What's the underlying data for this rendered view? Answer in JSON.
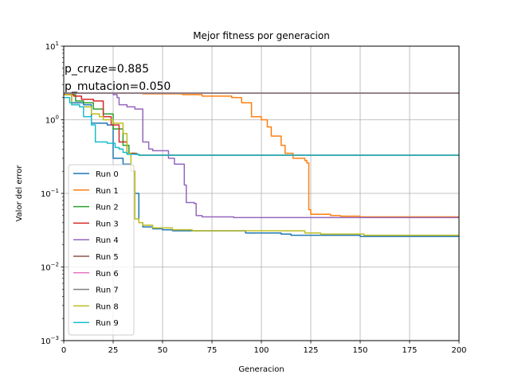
{
  "chart_data": {
    "type": "line",
    "title": "Mejor fitness por generacion",
    "xlabel": "Generacion",
    "ylabel": "Valor del error",
    "xlim": [
      0,
      200
    ],
    "ylim": [
      0.001,
      10
    ],
    "yscale": "log",
    "grid": true,
    "legend_position": "lower-left",
    "xticks": [
      0,
      25,
      50,
      75,
      100,
      125,
      150,
      175,
      200
    ],
    "xtick_labels": [
      "0",
      "25",
      "50",
      "75",
      "100",
      "125",
      "150",
      "175",
      "200"
    ],
    "yticks": [
      0.001,
      0.01,
      0.1,
      1,
      10
    ],
    "ytick_labels": [
      {
        "base": "10",
        "exp": "−3"
      },
      {
        "base": "10",
        "exp": "−2"
      },
      {
        "base": "10",
        "exp": "−1"
      },
      {
        "base": "10",
        "exp": "0"
      },
      {
        "base": "10",
        "exp": "1"
      }
    ],
    "annotations": [
      "p_cruze=0.885",
      "p_mutacion=0.050"
    ],
    "series": [
      {
        "name": "Run 0",
        "color": "#1f77b4",
        "points": [
          [
            0,
            2.3
          ],
          [
            3,
            2.2
          ],
          [
            4,
            1.7
          ],
          [
            10,
            1.6
          ],
          [
            14,
            0.9
          ],
          [
            22,
            0.85
          ],
          [
            25,
            0.3
          ],
          [
            30,
            0.25
          ],
          [
            32,
            0.25
          ],
          [
            34,
            0.2
          ],
          [
            36,
            0.1
          ],
          [
            38,
            0.04
          ],
          [
            40,
            0.035
          ],
          [
            45,
            0.033
          ],
          [
            50,
            0.032
          ],
          [
            55,
            0.031
          ],
          [
            65,
            0.031
          ],
          [
            90,
            0.031
          ],
          [
            92,
            0.029
          ],
          [
            110,
            0.028
          ],
          [
            115,
            0.027
          ],
          [
            125,
            0.027
          ],
          [
            150,
            0.026
          ],
          [
            200,
            0.026
          ]
        ]
      },
      {
        "name": "Run 1",
        "color": "#ff7f0e",
        "points": [
          [
            0,
            2.3
          ],
          [
            30,
            2.3
          ],
          [
            40,
            2.25
          ],
          [
            60,
            2.2
          ],
          [
            70,
            2.1
          ],
          [
            85,
            2.0
          ],
          [
            90,
            1.7
          ],
          [
            95,
            1.1
          ],
          [
            100,
            1.0
          ],
          [
            103,
            0.8
          ],
          [
            105,
            0.6
          ],
          [
            110,
            0.45
          ],
          [
            112,
            0.35
          ],
          [
            115,
            0.35
          ],
          [
            116,
            0.3
          ],
          [
            122,
            0.28
          ],
          [
            123,
            0.26
          ],
          [
            124,
            0.06
          ],
          [
            125,
            0.052
          ],
          [
            135,
            0.05
          ],
          [
            140,
            0.049
          ],
          [
            150,
            0.048
          ],
          [
            200,
            0.047
          ]
        ]
      },
      {
        "name": "Run 2",
        "color": "#2ca02c",
        "points": [
          [
            0,
            2.2
          ],
          [
            5,
            2.2
          ],
          [
            6,
            1.8
          ],
          [
            10,
            1.7
          ],
          [
            15,
            1.4
          ],
          [
            20,
            1.2
          ],
          [
            25,
            0.75
          ],
          [
            30,
            0.45
          ],
          [
            33,
            0.35
          ],
          [
            37,
            0.34
          ],
          [
            38,
            0.33
          ],
          [
            200,
            0.33
          ]
        ]
      },
      {
        "name": "Run 3",
        "color": "#d62728",
        "points": [
          [
            0,
            2.2
          ],
          [
            5,
            2.1
          ],
          [
            9,
            1.9
          ],
          [
            15,
            1.8
          ],
          [
            20,
            1.1
          ],
          [
            24,
            0.85
          ],
          [
            28,
            0.5
          ],
          [
            32,
            0.35
          ],
          [
            36,
            0.34
          ],
          [
            38,
            0.33
          ],
          [
            200,
            0.33
          ]
        ]
      },
      {
        "name": "Run 4",
        "color": "#9467bd",
        "points": [
          [
            0,
            2.3
          ],
          [
            20,
            2.3
          ],
          [
            25,
            2.2
          ],
          [
            27,
            2.0
          ],
          [
            28,
            1.6
          ],
          [
            30,
            1.6
          ],
          [
            32,
            1.5
          ],
          [
            36,
            1.4
          ],
          [
            40,
            0.5
          ],
          [
            43,
            0.4
          ],
          [
            45,
            0.38
          ],
          [
            52,
            0.38
          ],
          [
            53,
            0.3
          ],
          [
            56,
            0.25
          ],
          [
            60,
            0.25
          ],
          [
            61,
            0.13
          ],
          [
            62,
            0.075
          ],
          [
            66,
            0.073
          ],
          [
            67,
            0.05
          ],
          [
            70,
            0.048
          ],
          [
            85,
            0.048
          ],
          [
            86,
            0.047
          ],
          [
            200,
            0.047
          ]
        ]
      },
      {
        "name": "Run 5",
        "color": "#8c564b",
        "points": [
          [
            0,
            2.3
          ],
          [
            200,
            2.3
          ]
        ]
      },
      {
        "name": "Run 6",
        "color": "#e377c2",
        "points": [
          [
            0,
            2.3
          ],
          [
            200,
            2.3
          ]
        ]
      },
      {
        "name": "Run 7",
        "color": "#7f7f7f",
        "points": [
          [
            0,
            2.3
          ],
          [
            200,
            2.3
          ]
        ]
      },
      {
        "name": "Run 8",
        "color": "#bcbd22",
        "points": [
          [
            0,
            2.2
          ],
          [
            4,
            1.6
          ],
          [
            8,
            1.5
          ],
          [
            12,
            1.5
          ],
          [
            14,
            1.2
          ],
          [
            18,
            1.1
          ],
          [
            20,
            1.0
          ],
          [
            25,
            0.9
          ],
          [
            30,
            0.65
          ],
          [
            32,
            0.35
          ],
          [
            34,
            0.2
          ],
          [
            36,
            0.045
          ],
          [
            38,
            0.04
          ],
          [
            40,
            0.037
          ],
          [
            45,
            0.034
          ],
          [
            55,
            0.032
          ],
          [
            65,
            0.031
          ],
          [
            120,
            0.031
          ],
          [
            122,
            0.029
          ],
          [
            130,
            0.028
          ],
          [
            150,
            0.028
          ],
          [
            152,
            0.027
          ],
          [
            200,
            0.026
          ]
        ]
      },
      {
        "name": "Run 9",
        "color": "#17becf",
        "points": [
          [
            0,
            2.0
          ],
          [
            3,
            1.7
          ],
          [
            4,
            1.6
          ],
          [
            8,
            1.5
          ],
          [
            10,
            1.1
          ],
          [
            14,
            0.85
          ],
          [
            16,
            0.5
          ],
          [
            22,
            0.48
          ],
          [
            26,
            0.42
          ],
          [
            28,
            0.4
          ],
          [
            30,
            0.36
          ],
          [
            32,
            0.34
          ],
          [
            38,
            0.33
          ],
          [
            200,
            0.33
          ]
        ]
      }
    ]
  }
}
